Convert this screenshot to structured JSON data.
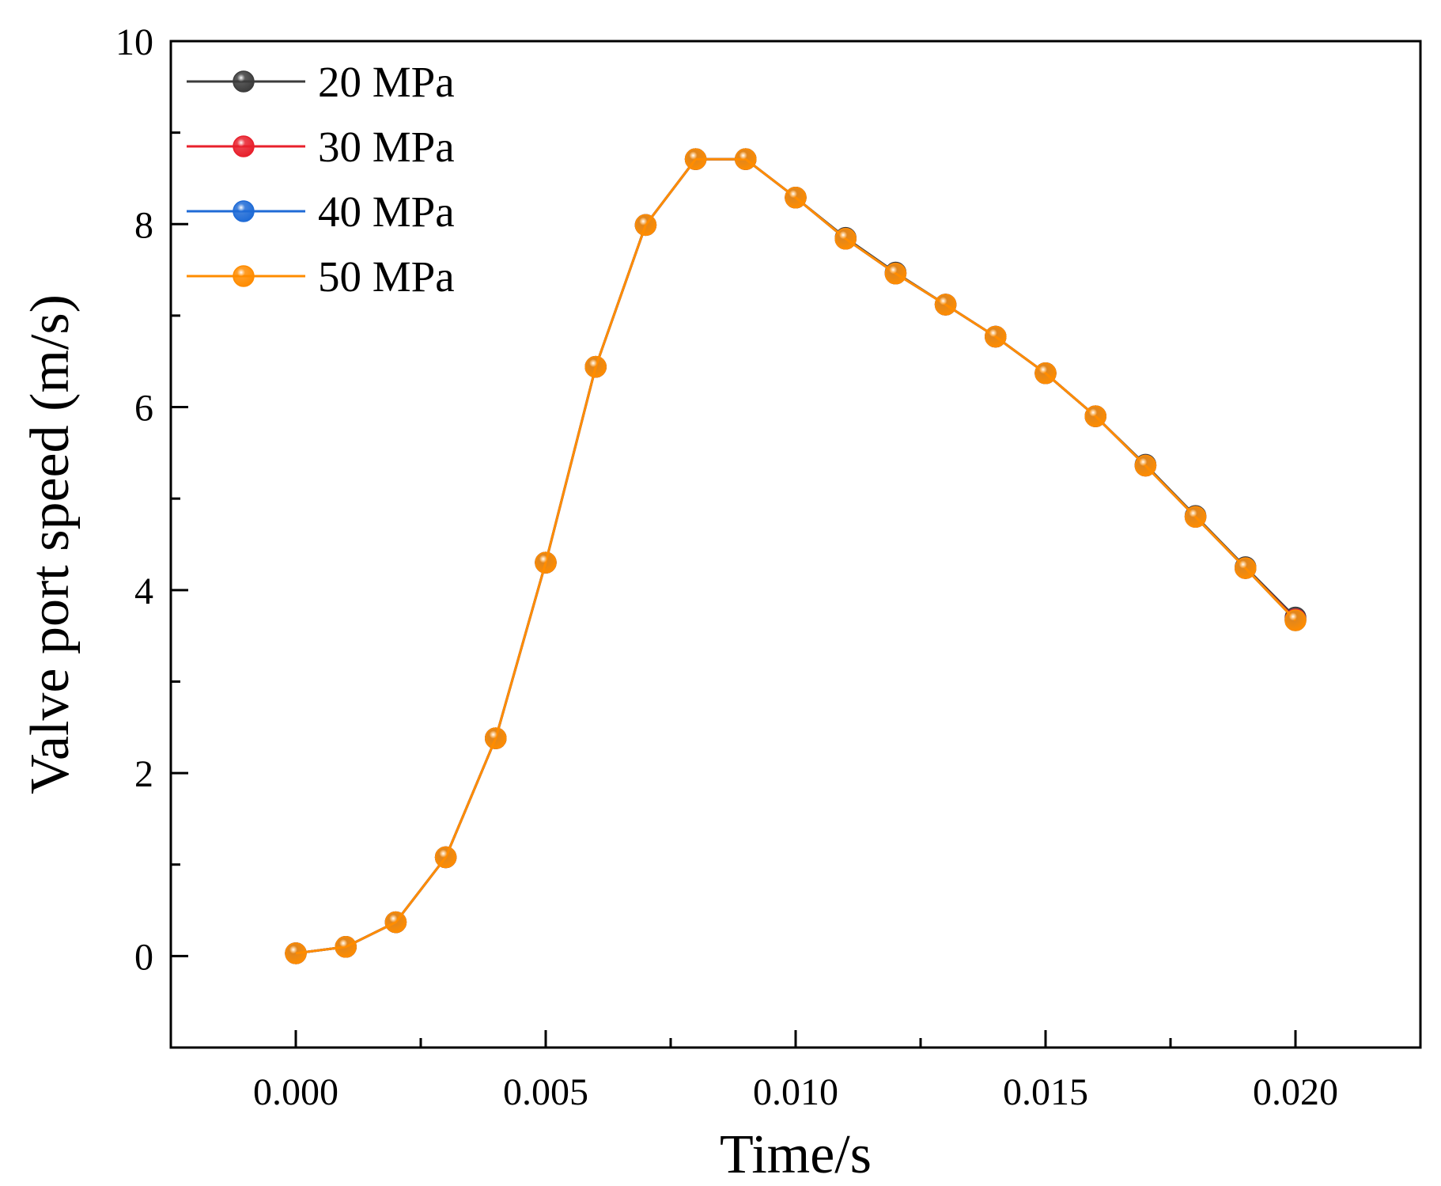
{
  "chart_data": {
    "type": "line",
    "title": "",
    "xlabel": "Time/s",
    "ylabel": "Valve port speed (m/s)",
    "xlim": [
      -0.0025,
      0.0225
    ],
    "ylim": [
      -1,
      10
    ],
    "x_ticks": [
      0.0,
      0.005,
      0.01,
      0.015,
      0.02
    ],
    "x_tick_labels": [
      "0.000",
      "0.005",
      "0.010",
      "0.015",
      "0.020"
    ],
    "y_ticks": [
      0,
      2,
      4,
      6,
      8,
      10
    ],
    "y_tick_labels": [
      "0",
      "2",
      "4",
      "6",
      "8",
      "10"
    ],
    "grid": false,
    "legend_position": "top-left",
    "x": [
      0.0,
      0.001,
      0.002,
      0.003,
      0.004,
      0.005,
      0.006,
      0.007,
      0.008,
      0.009,
      0.01,
      0.011,
      0.012,
      0.013,
      0.014,
      0.015,
      0.016,
      0.017,
      0.018,
      0.019,
      0.02
    ],
    "series": [
      {
        "name": "20 MPa",
        "color": "#3c3c3c",
        "values": [
          0.03,
          0.1,
          0.37,
          1.08,
          2.38,
          4.3,
          6.44,
          7.99,
          8.71,
          8.71,
          8.29,
          7.85,
          7.47,
          7.12,
          6.77,
          6.37,
          5.9,
          5.37,
          4.81,
          4.25,
          3.7
        ]
      },
      {
        "name": "30 MPa",
        "color": "#e8202c",
        "values": [
          0.03,
          0.1,
          0.37,
          1.08,
          2.38,
          4.3,
          6.44,
          7.99,
          8.71,
          8.71,
          8.29,
          7.84,
          7.46,
          7.12,
          6.77,
          6.37,
          5.9,
          5.36,
          4.8,
          4.24,
          3.68
        ]
      },
      {
        "name": "40 MPa",
        "color": "#1f6bd6",
        "values": [
          0.03,
          0.1,
          0.37,
          1.08,
          2.38,
          4.3,
          6.44,
          7.99,
          8.71,
          8.71,
          8.29,
          7.84,
          7.46,
          7.12,
          6.77,
          6.37,
          5.9,
          5.36,
          4.8,
          4.24,
          3.67
        ]
      },
      {
        "name": "50 MPa",
        "color": "#ff8c00",
        "values": [
          0.03,
          0.1,
          0.37,
          1.08,
          2.38,
          4.3,
          6.44,
          7.99,
          8.71,
          8.71,
          8.29,
          7.84,
          7.46,
          7.12,
          6.77,
          6.37,
          5.9,
          5.36,
          4.8,
          4.24,
          3.67
        ]
      }
    ]
  }
}
